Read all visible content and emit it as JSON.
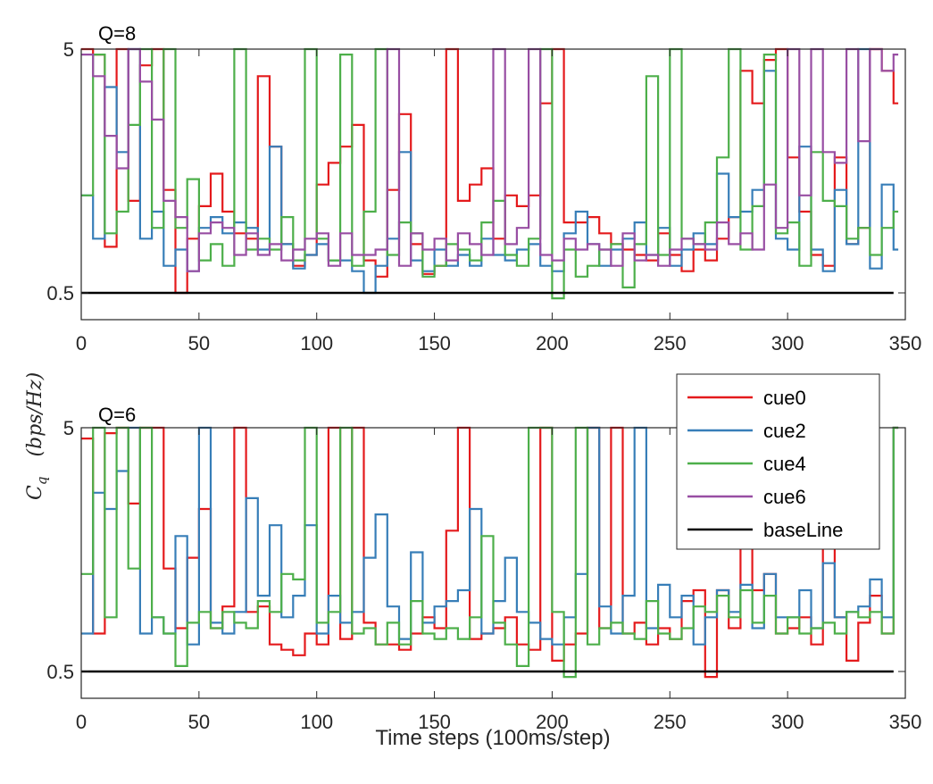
{
  "chart_data": [
    {
      "type": "line",
      "title": "Q=8",
      "xlabel": "",
      "ylabel": "C_q (bps/Hz)",
      "xlim": [
        0,
        350
      ],
      "ylim": [
        0.0,
        5
      ],
      "xticks": [
        0,
        50,
        100,
        150,
        200,
        250,
        300,
        350
      ],
      "yticks": [
        0.5,
        5
      ],
      "ytick_labels": [
        "0.5",
        "5"
      ],
      "x": [
        0,
        5,
        10,
        15,
        20,
        25,
        30,
        35,
        40,
        45,
        50,
        55,
        60,
        65,
        70,
        75,
        80,
        85,
        90,
        95,
        100,
        105,
        110,
        115,
        120,
        125,
        130,
        135,
        140,
        145,
        150,
        155,
        160,
        165,
        170,
        175,
        180,
        185,
        190,
        195,
        200,
        205,
        210,
        215,
        220,
        225,
        230,
        235,
        240,
        245,
        250,
        255,
        260,
        265,
        270,
        275,
        280,
        285,
        290,
        295,
        300,
        305,
        310,
        315,
        320,
        325,
        330,
        335,
        340,
        345
      ],
      "series": [
        {
          "name": "cue0",
          "color": "#e41a1c",
          "values": [
            5,
            4.9,
            1.35,
            5,
            2.2,
            4.7,
            5,
            2.4,
            0.5,
            1.5,
            2.1,
            2.7,
            2.0,
            1.6,
            1.5,
            4.5,
            3.2,
            1.4,
            1.0,
            1.2,
            2.5,
            2.9,
            3.2,
            3.6,
            1.1,
            0.8,
            2.4,
            3.8,
            1.4,
            0.85,
            1.0,
            5,
            2.2,
            2.5,
            2.8,
            1.5,
            2.3,
            2.1,
            2.3,
            4.0,
            5,
            1.8,
            1.8,
            1.9,
            1.6,
            1.4,
            1.3,
            1.2,
            1.1,
            1.6,
            1.2,
            0.9,
            1.3,
            1.1,
            1.5,
            1.9,
            4.6,
            4.0,
            4.8,
            5,
            3.0,
            2.0,
            1.2,
            1.0,
            3.0,
            1.4,
            1.7,
            5,
            4.6,
            4.0
          ]
        },
        {
          "name": "cue2",
          "color": "#377eb8",
          "values": [
            2.3,
            1.5,
            4.3,
            3.1,
            5,
            1.5,
            2.0,
            1.0,
            1.3,
            0.9,
            1.7,
            1.9,
            1.6,
            1.8,
            1.7,
            1.3,
            3.2,
            1.4,
            0.95,
            1.2,
            1.4,
            1.1,
            1.1,
            0.9,
            0.5,
            1.0,
            1.5,
            3.1,
            1.1,
            0.9,
            1.3,
            1.0,
            1.2,
            1.0,
            1.5,
            1.2,
            1.1,
            1.3,
            1.4,
            1.0,
            0.9,
            1.6,
            2.0,
            1.4,
            1.0,
            1.3,
            1.5,
            1.8,
            1.2,
            1.7,
            1.0,
            1.3,
            1.6,
            1.4,
            2.7,
            1.9,
            2.0,
            2.4,
            4.6,
            1.5,
            1.3,
            3.2,
            1.3,
            0.9,
            2.4,
            1.4,
            5,
            0.95,
            2.5,
            1.3
          ]
        },
        {
          "name": "cue4",
          "color": "#4daf4a",
          "values": [
            2.3,
            4.9,
            1.6,
            2.0,
            3.6,
            5,
            1.7,
            5,
            1.7,
            2.6,
            1.1,
            1.4,
            1.0,
            5,
            1.3,
            1.5,
            1.3,
            1.9,
            1.1,
            5,
            1.5,
            1.1,
            4.9,
            1.0,
            2.0,
            5,
            1.2,
            1.8,
            1.6,
            0.8,
            1.0,
            1.4,
            1.3,
            1.1,
            1.8,
            2.2,
            1.2,
            1.0,
            1.5,
            5,
            0.4,
            1.3,
            0.8,
            1.0,
            1.3,
            1.4,
            0.6,
            1.4,
            4.5,
            1.2,
            5,
            1.5,
            1.4,
            1.8,
            3.0,
            5,
            1.3,
            2.1,
            4.9,
            1.6,
            1.8,
            1.0,
            3.1,
            2.2,
            2.1,
            1.5,
            1.7,
            1.2,
            1.7,
            2.0
          ]
        },
        {
          "name": "cue6",
          "color": "#984ea3",
          "values": [
            4.9,
            4.5,
            3.4,
            2.8,
            5,
            4.4,
            3.7,
            2.2,
            1.9,
            0.9,
            1.6,
            1.8,
            1.7,
            1.2,
            1.6,
            1.2,
            1.4,
            1.1,
            1.3,
            1.5,
            1.6,
            1.0,
            1.6,
            1.2,
            1.2,
            1.3,
            5,
            1.0,
            1.6,
            1.3,
            1.5,
            1.1,
            1.6,
            1.4,
            1.2,
            5,
            1.4,
            1.7,
            5,
            1.2,
            1.1,
            1.5,
            1.3,
            1.4,
            1.3,
            1.0,
            1.6,
            1.1,
            1.2,
            1.0,
            1.3,
            1.5,
            1.4,
            1.3,
            1.8,
            1.4,
            1.6,
            1.3,
            2.5,
            1.7,
            5,
            2.3,
            5,
            3.1,
            2.9,
            5,
            3.3,
            5,
            4.6,
            4.9
          ]
        }
      ],
      "baseline": {
        "name": "baseLine",
        "color": "#000000",
        "x": [
          0,
          345
        ],
        "values": [
          0.5,
          0.5
        ]
      }
    },
    {
      "type": "line",
      "title": "Q=6",
      "xlabel": "Time steps (100ms/step)",
      "ylabel": "C_q (bps/Hz)",
      "xlim": [
        0,
        350
      ],
      "ylim": [
        0.0,
        5
      ],
      "xticks": [
        0,
        50,
        100,
        150,
        200,
        250,
        300,
        350
      ],
      "yticks": [
        0.5,
        5
      ],
      "ytick_labels": [
        "0.5",
        "5"
      ],
      "x": [
        0,
        5,
        10,
        15,
        20,
        25,
        30,
        35,
        40,
        45,
        50,
        55,
        60,
        65,
        70,
        75,
        80,
        85,
        90,
        95,
        100,
        105,
        110,
        115,
        120,
        125,
        130,
        135,
        140,
        145,
        150,
        155,
        160,
        165,
        170,
        175,
        180,
        185,
        190,
        195,
        200,
        205,
        210,
        215,
        220,
        225,
        230,
        235,
        240,
        245,
        250,
        255,
        260,
        265,
        270,
        275,
        280,
        285,
        290,
        295,
        300,
        305,
        310,
        315,
        320,
        325,
        330,
        335,
        340,
        345
      ],
      "series": [
        {
          "name": "cue0",
          "color": "#e41a1c",
          "values": [
            4.8,
            1.2,
            4.9,
            5,
            3.6,
            5,
            5,
            2.4,
            1.3,
            2.6,
            3.5,
            1.3,
            1.7,
            5,
            1.6,
            1.7,
            1.0,
            0.9,
            0.8,
            1.2,
            1.0,
            5,
            1.1,
            5,
            1.4,
            1.0,
            1.0,
            0.9,
            1.2,
            1.5,
            1.3,
            3.1,
            5,
            1.1,
            1.2,
            1.3,
            1.5,
            1.0,
            0.9,
            5,
            0.7,
            1.0,
            1.2,
            5,
            1.3,
            5,
            1.2,
            1.4,
            1.0,
            1.3,
            1.1,
            1.8,
            2.0,
            0.4,
            2.0,
            1.3,
            5,
            2.0,
            2.3,
            1.2,
            1.3,
            1.5,
            1.0,
            5,
            1.5,
            0.7,
            1.4,
            1.9,
            1.2,
            5
          ]
        },
        {
          "name": "cue2",
          "color": "#377eb8",
          "values": [
            1.2,
            3.8,
            3.5,
            4.2,
            5,
            1.2,
            1.5,
            1.2,
            3.0,
            1.0,
            5,
            1.4,
            1.2,
            1.6,
            3.7,
            1.9,
            3.2,
            1.5,
            1.9,
            3.2,
            1.2,
            1.9,
            1.4,
            1.6,
            2.6,
            3.4,
            1.7,
            1.1,
            2.7,
            1.4,
            1.7,
            1.8,
            2.0,
            3.5,
            1.2,
            1.8,
            2.6,
            1.6,
            1.4,
            1.1,
            1.0,
            1.5,
            2.3,
            5,
            1.7,
            1.2,
            1.9,
            5,
            1.3,
            2.1,
            1.5,
            1.9,
            1.0,
            1.5,
            2.0,
            1.6,
            2.1,
            1.3,
            2.3,
            1.5,
            1.5,
            2.0,
            1.3,
            2.5,
            1.5,
            1.6,
            1.7,
            2.2,
            1.5,
            5
          ]
        },
        {
          "name": "cue4",
          "color": "#4daf4a",
          "values": [
            2.3,
            5,
            1.5,
            5,
            2.4,
            5,
            1.5,
            1.2,
            0.6,
            1.4,
            1.6,
            1.3,
            1.6,
            1.4,
            1.3,
            1.8,
            1.6,
            2.3,
            2.2,
            5,
            1.4,
            1.6,
            5,
            1.2,
            1.3,
            1.0,
            1.4,
            1.0,
            1.8,
            1.2,
            1.1,
            1.3,
            1.1,
            1.5,
            3.0,
            1.4,
            1.0,
            0.6,
            5,
            5,
            1.6,
            0.4,
            5,
            1.0,
            1.3,
            1.4,
            1.2,
            1.1,
            1.8,
            1.2,
            1.1,
            1.3,
            1.7,
            1.6,
            1.9,
            1.5,
            2.0,
            1.4,
            1.9,
            1.2,
            1.5,
            1.2,
            1.3,
            1.4,
            1.2,
            1.6,
            1.5,
            1.6,
            1.2,
            5
          ]
        }
      ],
      "baseline": {
        "name": "baseLine",
        "color": "#000000",
        "x": [
          0,
          345
        ],
        "values": [
          0.5,
          0.5
        ]
      }
    }
  ],
  "legend": {
    "location": "upper-right of lower panel",
    "entries": [
      {
        "label": "cue0",
        "color": "#e41a1c"
      },
      {
        "label": "cue2",
        "color": "#377eb8"
      },
      {
        "label": "cue4",
        "color": "#4daf4a"
      },
      {
        "label": "cue6",
        "color": "#984ea3"
      },
      {
        "label": "baseLine",
        "color": "#000000"
      }
    ]
  },
  "shared_ylabel": {
    "main": "C",
    "sub": "q",
    "units": "(bps/Hz)"
  }
}
